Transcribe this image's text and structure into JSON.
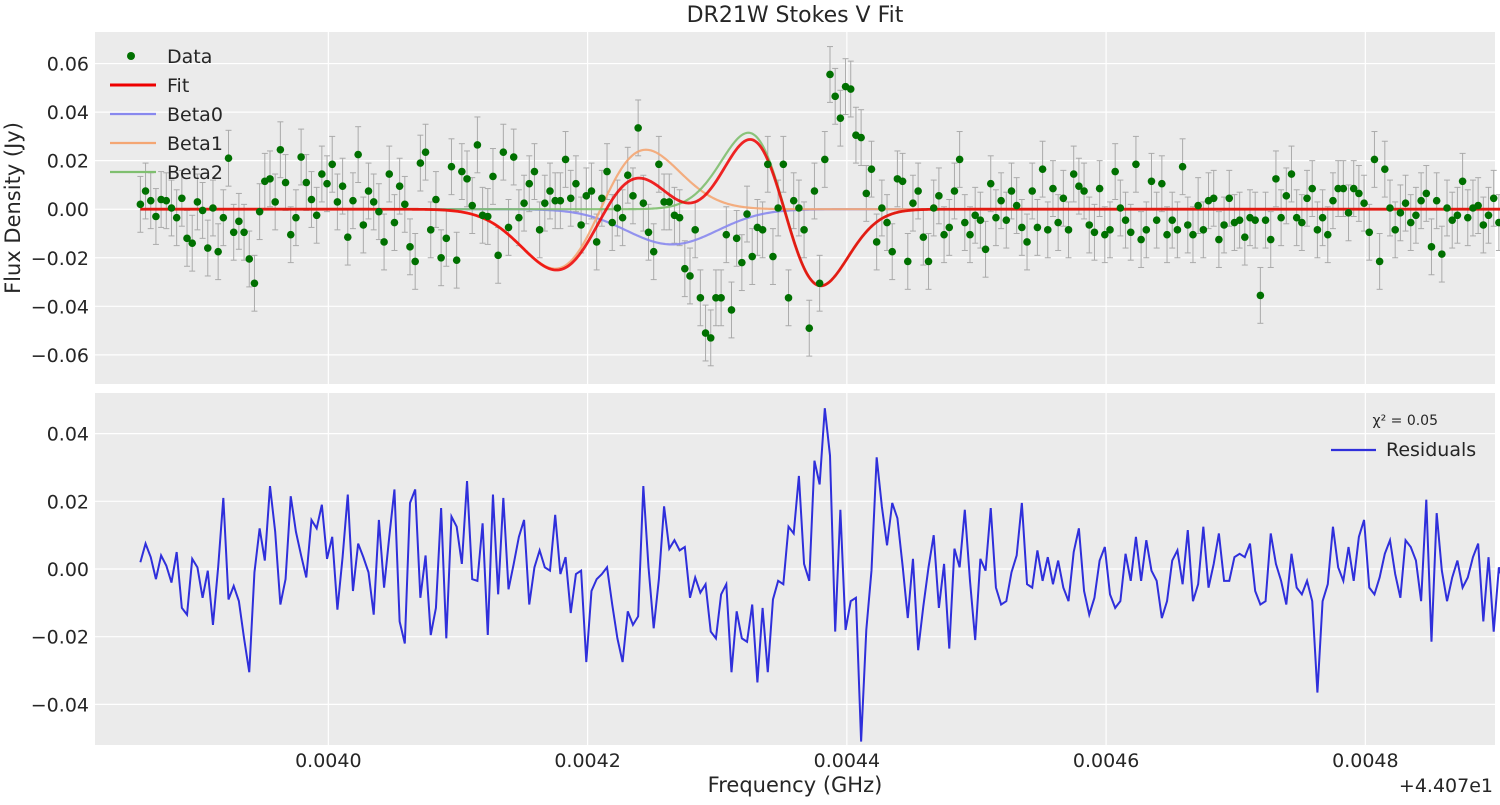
{
  "chart_data": [
    {
      "type": "scatter",
      "title": "DR21W Stokes V Fit",
      "ylabel": "Flux Density (Jy)",
      "xlim": [
        0.00382,
        0.0049
      ],
      "ylim": [
        -0.072,
        0.073
      ],
      "x_offset_label": "+4.407e1",
      "y_ticks": [
        "0.06",
        "0.04",
        "0.02",
        "0.00",
        "−0.02",
        "−0.04",
        "−0.06"
      ],
      "y_tick_values": [
        0.06,
        0.04,
        0.02,
        0.0,
        -0.02,
        -0.04,
        -0.06
      ],
      "grid": true,
      "legend_position": "upper-left",
      "legend": [
        "Data",
        "Fit",
        "Beta0",
        "Beta1",
        "Beta2"
      ],
      "x_start": 0.003855,
      "x_step": 4e-06,
      "data_y": [
        0.002,
        0.0075,
        0.0035,
        -0.003,
        0.004,
        0.0035,
        0.0005,
        -0.0035,
        0.0045,
        -0.012,
        -0.014,
        0.003,
        -0.0005,
        -0.016,
        0.0005,
        -0.0175,
        -0.0035,
        0.021,
        -0.0095,
        -0.005,
        -0.0095,
        -0.0205,
        -0.0305,
        -0.001,
        0.0115,
        0.0125,
        0.003,
        0.0245,
        0.011,
        -0.0105,
        -0.0035,
        0.0215,
        0.011,
        0.004,
        -0.0025,
        0.0145,
        0.0105,
        0.0185,
        0.003,
        0.0095,
        -0.0115,
        0.0035,
        0.0225,
        -0.0065,
        0.0075,
        0.003,
        -0.001,
        -0.0135,
        0.0145,
        -0.0055,
        0.0095,
        0.002,
        -0.0155,
        -0.0215,
        0.019,
        0.0235,
        -0.0085,
        0.004,
        -0.02,
        -0.012,
        0.0175,
        -0.021,
        0.0155,
        0.0125,
        0.0015,
        0.0265,
        -0.0025,
        -0.003,
        0.0135,
        -0.019,
        0.0235,
        -0.0075,
        0.0215,
        -0.0035,
        0.0025,
        0.0105,
        0.0155,
        -0.0085,
        0.0025,
        0.0075,
        0.0035,
        0.0035,
        0.0205,
        0.0045,
        0.0105,
        -0.0065,
        0.0055,
        0.0075,
        -0.0135,
        0.0045,
        0.0155,
        -0.0055,
        0.0005,
        -0.0035,
        0.014,
        0.0055,
        0.0335,
        0.0025,
        -0.0095,
        -0.0175,
        0.0185,
        0.003,
        0.003,
        -0.0025,
        -0.0035,
        -0.0245,
        -0.0275,
        -0.0085,
        -0.0365,
        -0.051,
        -0.053,
        -0.0365,
        -0.0365,
        -0.0105,
        -0.0415,
        -0.012,
        -0.022,
        -0.002,
        -0.0195,
        -0.0075,
        -0.0085,
        0.0185,
        -0.0195,
        0.0005,
        0.0185,
        -0.0365,
        0.0035,
        0.0005,
        -0.0085,
        -0.049,
        0.0075,
        -0.0305,
        0.0205,
        0.0555,
        0.0465,
        0.0375,
        0.0505,
        0.0495,
        0.0305,
        0.0295,
        0.0065,
        0.0165,
        -0.0135,
        0.0005,
        -0.0055,
        -0.0175,
        0.0125,
        0.0115,
        -0.0215,
        0.0025,
        0.0075,
        -0.0115,
        -0.0215,
        0.0005,
        0.0055,
        -0.0105,
        -0.0075,
        0.0075,
        0.0205,
        -0.0055,
        -0.0105,
        -0.0025,
        -0.0045,
        -0.0165,
        0.0105,
        -0.0035,
        0.0035,
        -0.0045,
        0.0075,
        0.0015,
        -0.0075,
        -0.0135,
        0.0075,
        -0.0075,
        0.0165,
        -0.0085,
        0.0085,
        -0.0055,
        0.0045,
        -0.0085,
        0.0145,
        0.0095,
        0.0075,
        -0.0065,
        -0.0095,
        0.0085,
        -0.0105,
        -0.0085,
        0.0155,
        0.0005,
        -0.0045,
        -0.0095,
        0.0185,
        -0.0125,
        -0.0085,
        0.0115,
        -0.0045,
        0.0105,
        -0.0105,
        -0.0045,
        -0.0085,
        0.0175,
        -0.0065,
        -0.0105,
        0.0015,
        -0.0085,
        0.0035,
        0.0045,
        -0.0125,
        -0.0065,
        0.0045,
        -0.0055,
        -0.0045,
        -0.0115,
        -0.0035,
        -0.0045,
        -0.0355,
        -0.0045,
        -0.0125,
        0.0125,
        -0.0035,
        0.0055,
        0.0145,
        -0.0035,
        -0.0055,
        0.0045,
        0.0085,
        -0.0085,
        -0.0035,
        -0.0105,
        0.0035,
        0.0085,
        0.0085,
        -0.0015,
        0.0085,
        0.0065,
        0.0025,
        -0.0095,
        0.0205,
        -0.0215,
        0.0165,
        0.0005,
        -0.0085,
        -0.0015,
        0.0025,
        -0.0055,
        -0.0025,
        0.0035,
        0.0065,
        -0.0155,
        0.0035,
        -0.0185,
        0.0005,
        -0.0045,
        -0.0025,
        0.0115,
        -0.0035,
        0.0005,
        0.0015,
        -0.0065,
        -0.0025,
        0.0045,
        -0.0055,
        0.0015,
        -0.0125,
        0.0035,
        0.0105
      ],
      "error_bar": 0.0115,
      "fit_components": [
        {
          "name": "Beta0",
          "amplitude": -0.0145,
          "center": 0.004265,
          "width": 3.5e-05,
          "color": "#8888ee"
        },
        {
          "name": "Beta1",
          "type": "derivative",
          "amplitude": 0.0245,
          "center": 0.00421,
          "width": 3.5e-05,
          "color": "#f4a673"
        },
        {
          "name": "Beta2",
          "type": "derivative",
          "amplitude": -0.0315,
          "center": 0.004352,
          "width": 2.8e-05,
          "color": "#7fbf6f"
        }
      ],
      "colors": {
        "data": "#007000",
        "fit": "#ee0000",
        "errorbar": "#aaaaaa",
        "background": "#ebebeb",
        "grid": "#ffffff"
      }
    },
    {
      "type": "line",
      "xlabel": "Frequency (GHz)",
      "xlim": [
        0.00382,
        0.0049
      ],
      "ylim": [
        -0.052,
        0.052
      ],
      "x_ticks": [
        "0.0040",
        "0.0042",
        "0.0044",
        "0.0046",
        "0.0048"
      ],
      "x_tick_values": [
        0.004,
        0.0042,
        0.0044,
        0.0046,
        0.0048
      ],
      "y_ticks": [
        "0.04",
        "0.02",
        "0.00",
        "−0.02",
        "−0.04"
      ],
      "y_tick_values": [
        0.04,
        0.02,
        0.0,
        -0.02,
        -0.04
      ],
      "legend": [
        "Residuals"
      ],
      "legend_position": "upper-right",
      "annotation": "χ² = 0.05",
      "series": [
        {
          "name": "Residuals",
          "color": "#2f2fdb",
          "values": [
            0.002,
            0.0075,
            0.0035,
            -0.003,
            0.004,
            0.001,
            -0.004,
            0.005,
            -0.0115,
            -0.0135,
            0.003,
            0.0005,
            -0.0085,
            -0.0005,
            -0.0165,
            0.0005,
            0.021,
            -0.009,
            -0.005,
            -0.0095,
            -0.0205,
            -0.0305,
            -0.001,
            0.012,
            0.0025,
            0.0245,
            0.011,
            -0.0105,
            -0.003,
            0.0215,
            0.011,
            0.004,
            -0.0025,
            0.0145,
            0.012,
            0.019,
            0.003,
            0.0095,
            -0.012,
            0.0035,
            0.022,
            -0.0065,
            0.0075,
            0.0035,
            -0.001,
            -0.0135,
            0.0145,
            -0.0055,
            0.0095,
            0.0235,
            -0.0155,
            -0.022,
            0.0195,
            0.0235,
            -0.0085,
            0.004,
            -0.0195,
            -0.0115,
            0.018,
            -0.0205,
            0.0155,
            0.0125,
            0.0015,
            0.026,
            -0.003,
            -0.0035,
            0.0135,
            -0.0195,
            0.022,
            -0.0075,
            0.021,
            -0.006,
            0.0015,
            0.0095,
            0.0145,
            -0.0105,
            0.0005,
            0.0055,
            0.0005,
            -0.0005,
            0.016,
            -0.0015,
            0.0035,
            -0.013,
            -0.0015,
            -0.0005,
            -0.0275,
            -0.0065,
            -0.003,
            -0.0015,
            0.0005,
            -0.0105,
            -0.0205,
            -0.0275,
            -0.0125,
            -0.0165,
            -0.014,
            0.0245,
            0.0005,
            -0.0175,
            -0.003,
            0.0185,
            0.006,
            0.0085,
            0.0055,
            0.0065,
            -0.0085,
            -0.0025,
            -0.007,
            -0.0045,
            -0.0185,
            -0.0205,
            -0.0075,
            -0.0045,
            -0.0305,
            -0.0125,
            -0.0205,
            -0.0215,
            -0.0105,
            -0.0335,
            -0.0115,
            -0.0305,
            -0.009,
            -0.0035,
            -0.0045,
            0.0125,
            0.0105,
            0.0275,
            0.0015,
            -0.0035,
            0.032,
            0.025,
            0.0475,
            0.0335,
            -0.0185,
            0.0175,
            -0.018,
            -0.0095,
            -0.0085,
            -0.051,
            -0.018,
            -0.0005,
            0.033,
            0.0185,
            0.007,
            0.0195,
            0.015,
            0.001,
            -0.0145,
            0.003,
            -0.024,
            -0.011,
            0.0005,
            0.01,
            -0.0115,
            0.0015,
            -0.0235,
            0.006,
            0.0005,
            0.0175,
            -0.0035,
            -0.021,
            0.003,
            -0.0005,
            0.018,
            -0.0055,
            -0.0105,
            -0.0095,
            -0.001,
            0.004,
            0.0195,
            -0.0045,
            -0.0055,
            0.0055,
            -0.0035,
            0.0035,
            -0.0045,
            0.0025,
            -0.0055,
            -0.0095,
            0.005,
            0.012,
            -0.0065,
            -0.0135,
            -0.0085,
            0.0025,
            0.0065,
            -0.0075,
            -0.0115,
            -0.0095,
            0.0045,
            -0.0035,
            0.0095,
            -0.0035,
            0.0085,
            -0.0005,
            -0.0035,
            -0.0145,
            -0.0095,
            0.0025,
            0.0055,
            -0.0045,
            0.0115,
            -0.0095,
            -0.0045,
            0.0125,
            -0.0055,
            0.0015,
            0.0105,
            -0.0035,
            -0.0035,
            0.0035,
            0.0045,
            0.0035,
            0.0075,
            -0.0065,
            -0.0105,
            -0.0095,
            0.0105,
            0.0015,
            -0.0035,
            -0.0105,
            0.0045,
            -0.0055,
            -0.0075,
            -0.0035,
            -0.0095,
            -0.0365,
            -0.0095,
            -0.0045,
            0.0125,
            0.0005,
            -0.0035,
            0.0065,
            -0.0035,
            0.0095,
            0.0145,
            -0.0055,
            -0.0075,
            -0.0025,
            0.0045,
            0.0085,
            -0.0015,
            -0.0085,
            0.0085,
            0.0065,
            0.0025,
            -0.0095,
            0.0205,
            -0.0215,
            0.0165,
            -0.0005,
            -0.0095,
            -0.0025,
            0.0025,
            -0.0055,
            -0.0025,
            0.0035,
            0.0075,
            -0.0155,
            0.0035,
            -0.0185,
            0.0005,
            -0.0045,
            -0.0025,
            0.0115,
            -0.0035,
            -0.0025,
            0.0015,
            -0.0075,
            -0.0025,
            0.0045,
            -0.0055,
            0.0015,
            -0.0125,
            0.0045,
            0.0105
          ]
        }
      ]
    }
  ]
}
